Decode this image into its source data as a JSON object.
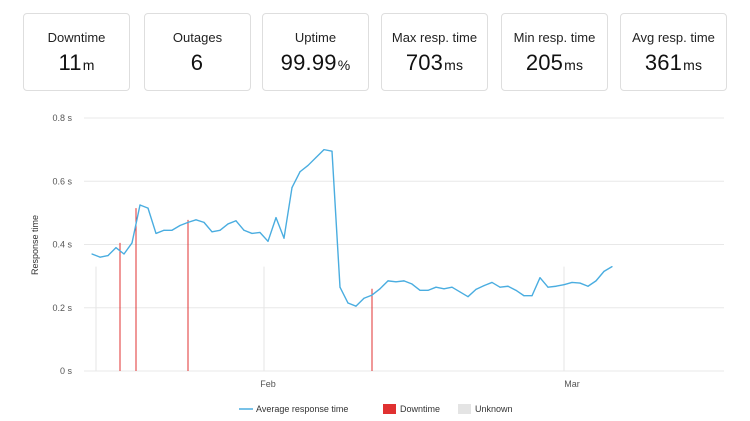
{
  "stats": [
    {
      "label": "Downtime",
      "value": "11",
      "unit": "m"
    },
    {
      "label": "Outages",
      "value": "6",
      "unit": ""
    },
    {
      "label": "Uptime",
      "value": "99.99",
      "unit": "%"
    },
    {
      "label": "Max resp. time",
      "value": "703",
      "unit": "ms"
    },
    {
      "label": "Min resp. time",
      "value": "205",
      "unit": "ms"
    },
    {
      "label": "Avg resp. time",
      "value": "361",
      "unit": "ms"
    }
  ],
  "chart_data": {
    "type": "line",
    "ylabel": "Response time",
    "xlabel": "",
    "ylim": [
      0,
      0.8
    ],
    "yticks": [
      0,
      0.2,
      0.4,
      0.6,
      0.8
    ],
    "ytick_labels": [
      "0 s",
      "0.2 s",
      "0.4 s",
      "0.6 s",
      "0.8 s"
    ],
    "xlim": [
      0,
      80
    ],
    "xticks": [
      {
        "x": 23,
        "label": "Feb"
      },
      {
        "x": 61,
        "label": "Mar"
      }
    ],
    "grid": true,
    "legend_position": "bottom",
    "series": [
      {
        "name": "Average response time",
        "color": "#4aade0",
        "values": [
          0.37,
          0.36,
          0.365,
          0.39,
          0.37,
          0.405,
          0.525,
          0.515,
          0.435,
          0.445,
          0.445,
          0.46,
          0.47,
          0.478,
          0.47,
          0.44,
          0.445,
          0.465,
          0.475,
          0.445,
          0.435,
          0.438,
          0.41,
          0.485,
          0.42,
          0.58,
          0.63,
          0.65,
          0.675,
          0.7,
          0.695,
          0.265,
          0.215,
          0.205,
          0.23,
          0.24,
          0.26,
          0.285,
          0.282,
          0.285,
          0.275,
          0.255,
          0.255,
          0.265,
          0.26,
          0.265,
          0.25,
          0.235,
          0.258,
          0.27,
          0.28,
          0.265,
          0.268,
          0.255,
          0.238,
          0.238,
          0.295,
          0.265,
          0.268,
          0.273,
          0.28,
          0.278,
          0.268,
          0.285,
          0.315,
          0.33
        ]
      }
    ],
    "downtime": {
      "name": "Downtime",
      "color": "#e03131",
      "x": [
        4.5,
        6.5,
        13,
        36
      ]
    },
    "unknown": {
      "name": "Unknown",
      "color": "#e4e4e4",
      "x": [
        1.5,
        22.5,
        60
      ]
    }
  }
}
